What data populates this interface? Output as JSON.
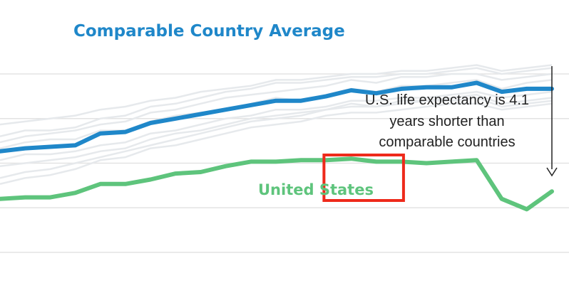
{
  "chart_data": {
    "type": "line",
    "title": "",
    "xlabel": "",
    "ylabel": "",
    "ylim": [
      76.5,
      82.8
    ],
    "grid": true,
    "x": [
      1,
      2,
      3,
      4,
      5,
      6,
      7,
      8,
      9,
      10,
      11,
      12,
      13,
      14,
      15,
      16,
      17,
      18,
      19,
      20,
      21,
      22,
      23
    ],
    "series": [
      {
        "name": "Comparable Country Average",
        "color": "#1f87c9",
        "values": [
          79.9,
          80.0,
          80.05,
          80.1,
          80.5,
          80.55,
          80.85,
          81.0,
          81.15,
          81.3,
          81.45,
          81.6,
          81.6,
          81.75,
          81.95,
          81.85,
          82.0,
          82.05,
          82.05,
          82.2,
          81.9,
          82.0,
          82.0
        ]
      },
      {
        "name": "United States",
        "color": "#5ec47c",
        "values": [
          78.3,
          78.35,
          78.35,
          78.5,
          78.8,
          78.8,
          78.95,
          79.15,
          79.2,
          79.4,
          79.55,
          79.55,
          79.6,
          79.6,
          79.65,
          79.55,
          79.55,
          79.5,
          79.55,
          79.6,
          78.3,
          77.95,
          78.55
        ]
      }
    ],
    "background_series": [
      [
        79.6,
        79.8,
        79.8,
        79.9,
        80.1,
        80.2,
        80.5,
        80.6,
        80.8,
        81.0,
        81.1,
        81.3,
        81.3,
        81.4,
        81.6,
        81.6,
        81.7,
        81.7,
        81.8,
        81.9,
        81.7,
        81.8,
        81.9
      ],
      [
        80.4,
        80.6,
        80.6,
        80.7,
        81.0,
        81.1,
        81.4,
        81.5,
        81.7,
        81.9,
        82.0,
        82.2,
        82.2,
        82.3,
        82.4,
        82.4,
        82.5,
        82.5,
        82.6,
        82.7,
        82.5,
        82.6,
        82.7
      ],
      [
        79.4,
        79.5,
        79.6,
        79.7,
        79.9,
        80.0,
        80.3,
        80.5,
        80.6,
        80.8,
        81.0,
        81.1,
        81.2,
        81.3,
        81.5,
        81.4,
        81.6,
        81.6,
        81.7,
        81.8,
        81.5,
        81.6,
        81.7
      ],
      [
        80.8,
        80.9,
        81.0,
        81.1,
        81.3,
        81.4,
        81.6,
        81.7,
        81.9,
        82.0,
        82.1,
        82.3,
        82.3,
        82.4,
        82.5,
        82.5,
        82.6,
        82.6,
        82.7,
        82.8,
        82.6,
        82.7,
        82.8
      ],
      [
        79.0,
        79.2,
        79.3,
        79.5,
        79.7,
        79.9,
        80.1,
        80.3,
        80.5,
        80.7,
        80.9,
        81.0,
        81.1,
        81.3,
        81.4,
        81.4,
        81.5,
        81.6,
        81.6,
        81.7,
        81.4,
        81.5,
        81.6
      ],
      [
        80.0,
        80.2,
        80.3,
        80.3,
        80.6,
        80.6,
        80.9,
        81.1,
        81.2,
        81.3,
        81.5,
        81.7,
        81.6,
        81.8,
        82.0,
        81.9,
        82.1,
        82.1,
        82.2,
        82.3,
        82.0,
        82.2,
        82.3
      ],
      [
        78.8,
        79.0,
        79.1,
        79.3,
        79.6,
        79.7,
        80.0,
        80.1,
        80.3,
        80.5,
        80.7,
        80.8,
        80.9,
        81.1,
        81.2,
        81.2,
        81.3,
        81.4,
        81.5,
        81.5,
        81.3,
        81.4,
        81.5
      ],
      [
        80.2,
        80.4,
        80.5,
        80.6,
        80.8,
        80.9,
        81.2,
        81.3,
        81.5,
        81.7,
        81.8,
        81.9,
        82.0,
        82.1,
        82.3,
        82.2,
        82.4,
        82.4,
        82.5,
        82.5,
        82.3,
        82.4,
        82.5
      ]
    ],
    "highlight": {
      "x_from": 14,
      "x_to": 17,
      "color": "#ee2a1b"
    },
    "labels": {
      "blue": "Comparable Country Average",
      "green": "United States",
      "annotation_lines": [
        "U.S. life expectancy is 4.1",
        "years shorter than",
        "comparable countries"
      ]
    },
    "gridlines_y": [
      76.5,
      78.0,
      79.5,
      81.0,
      82.5
    ]
  }
}
